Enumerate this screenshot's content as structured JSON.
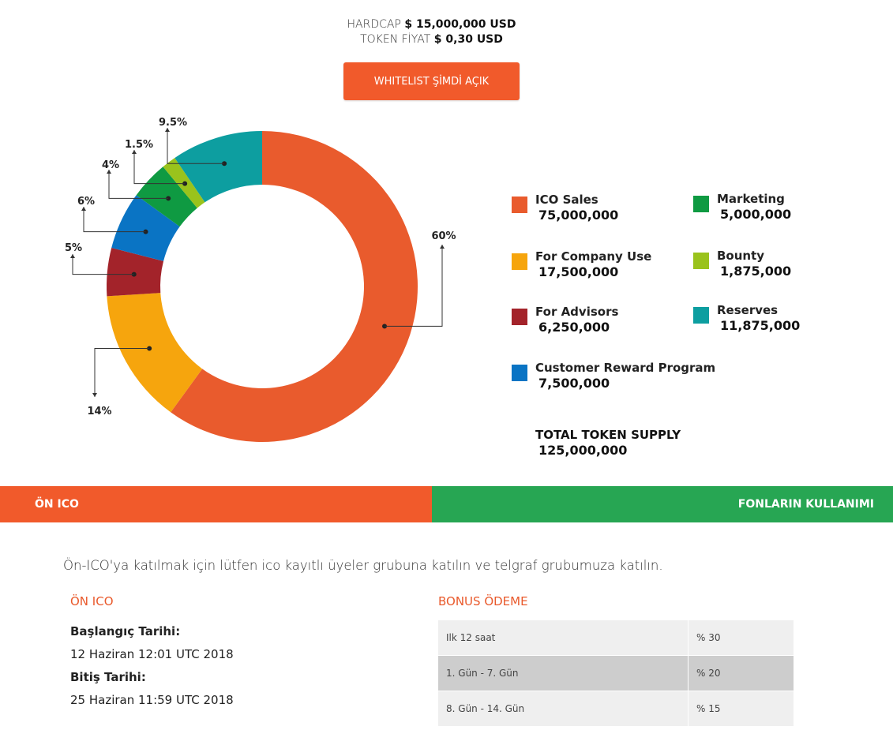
{
  "header": {
    "hardcap_label": "HARDCAP",
    "hardcap_value": "$ 15,000,000 USD",
    "price_label": "TOKEN FİYAT",
    "price_value": "$ 0,30 USD"
  },
  "whitelist_button": "WHITELIST ŞİMDİ AÇIK",
  "chart_data": {
    "type": "pie",
    "categories": [
      "ICO Sales",
      "For Company Use",
      "For Advisors",
      "Customer Reward Program",
      "Marketing",
      "Bounty",
      "Reserves"
    ],
    "values": [
      60,
      14,
      5,
      6,
      4,
      1.5,
      9.5
    ],
    "labels": [
      "60%",
      "14%",
      "5%",
      "6%",
      "4%",
      "1.5%",
      "9.5%"
    ],
    "colors": [
      "#e95b2d",
      "#f6a50d",
      "#a3232a",
      "#0a74c4",
      "#0f9a42",
      "#9ac31c",
      "#0d9ea0"
    ]
  },
  "legend": [
    {
      "name": "ICO Sales",
      "value": "75,000,000",
      "color": "#e95b2d"
    },
    {
      "name": "For Company Use",
      "value": "17,500,000",
      "color": "#f6a50d"
    },
    {
      "name": "For Advisors",
      "value": "6,250,000",
      "color": "#a3232a"
    },
    {
      "name": "Customer Reward Program",
      "value": "7,500,000",
      "color": "#0a74c4"
    },
    {
      "name": "Marketing",
      "value": "5,000,000",
      "color": "#0f9a42"
    },
    {
      "name": "Bounty",
      "value": "1,875,000",
      "color": "#9ac31c"
    },
    {
      "name": "Reserves",
      "value": "11,875,000",
      "color": "#0d9ea0"
    }
  ],
  "total": {
    "label": "TOTAL TOKEN SUPPLY",
    "value": "125,000,000"
  },
  "tabs": {
    "pre_ico": "ÖN ICO",
    "funds": "FONLARIN KULLANIMI"
  },
  "intro": "Ön-ICO'ya katılmak için lütfen ico kayıtlı üyeler grubuna katılın ve telgraf grubumuza katılın.",
  "pre_ico": {
    "title": "ÖN ICO",
    "start_label": "Başlangıç Tarihi:",
    "start_value": "12 Haziran 12:01 UTC 2018",
    "end_label": "Bitiş Tarihi:",
    "end_value": "25 Haziran 11:59 UTC 2018"
  },
  "bonus": {
    "title": "BONUS ÖDEME",
    "rows": [
      {
        "period": "Ilk 12 saat",
        "bonus": "% 30"
      },
      {
        "period": "1. Gün - 7. Gün",
        "bonus": "% 20"
      },
      {
        "period": "8. Gün - 14. Gün",
        "bonus": "% 15"
      }
    ]
  }
}
